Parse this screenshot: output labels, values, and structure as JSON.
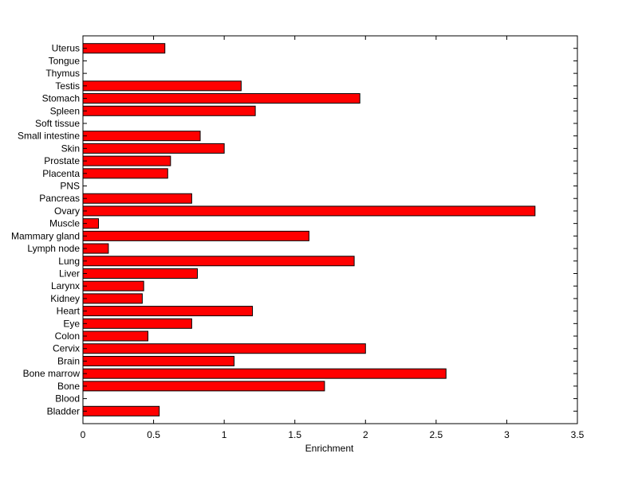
{
  "chart_data": {
    "type": "bar",
    "orientation": "horizontal",
    "title": "",
    "xlabel": "Enrichment",
    "ylabel": "",
    "xlim": [
      0,
      3.5
    ],
    "x_ticks": [
      "0",
      "0.5",
      "1",
      "1.5",
      "2",
      "2.5",
      "3",
      "3.5"
    ],
    "grid": false,
    "bar_color": "#ff0000",
    "categories": [
      "Bladder",
      "Blood",
      "Bone",
      "Bone marrow",
      "Brain",
      "Cervix",
      "Colon",
      "Eye",
      "Heart",
      "Kidney",
      "Larynx",
      "Liver",
      "Lung",
      "Lymph node",
      "Mammary gland",
      "Muscle",
      "Ovary",
      "Pancreas",
      "PNS",
      "Placenta",
      "Prostate",
      "Skin",
      "Small intestine",
      "Soft tissue",
      "Spleen",
      "Stomach",
      "Testis",
      "Thymus",
      "Tongue",
      "Uterus"
    ],
    "values": [
      0.54,
      0,
      1.71,
      2.57,
      1.07,
      2.0,
      0.46,
      0.77,
      1.2,
      0.42,
      0.43,
      0.81,
      1.92,
      0.18,
      1.6,
      0.11,
      3.2,
      0.77,
      0,
      0.6,
      0.62,
      1.0,
      0.83,
      0,
      1.22,
      1.96,
      1.12,
      0,
      0,
      0.58
    ]
  }
}
